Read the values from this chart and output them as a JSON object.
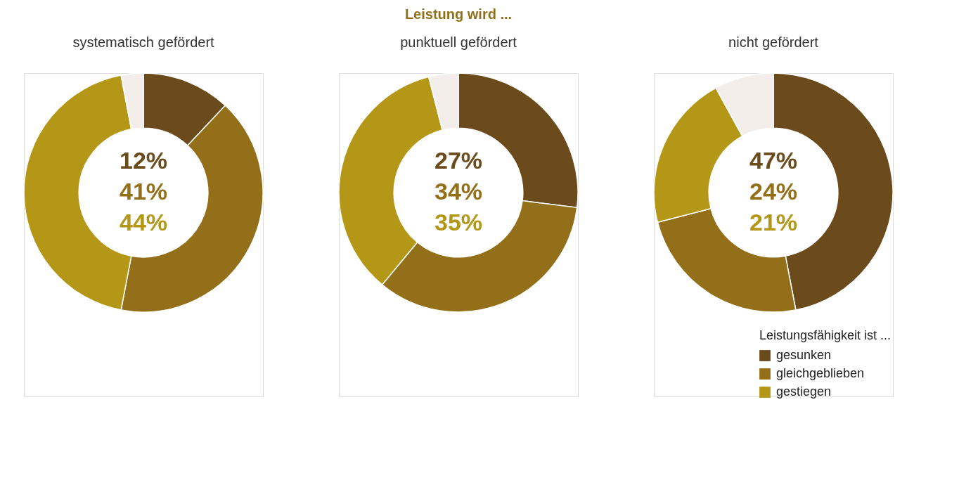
{
  "chart_data": [
    {
      "type": "donut",
      "subtitle": "systematisch gefördert",
      "categories": [
        null,
        null,
        null,
        null
      ],
      "values": [
        12,
        41,
        44,
        3
      ],
      "colors": [
        "#6b4a1c",
        "#946f19",
        "#b59718",
        "#f3eeea"
      ],
      "annotations": [
        "12%",
        "41%",
        "44%"
      ]
    },
    {
      "type": "donut",
      "title": "Leistung wird ...",
      "subtitle": "punktuell gefördert",
      "categories": [
        null,
        null,
        null,
        null
      ],
      "values": [
        27,
        34,
        35,
        4
      ],
      "colors": [
        "#6b4a1c",
        "#946f19",
        "#b59718",
        "#f3eeea"
      ],
      "annotations": [
        "27%",
        "34%",
        "35%"
      ]
    },
    {
      "type": "donut",
      "subtitle": "nicht gefördert",
      "categories": [
        "gesunken",
        "gleichgeblieben",
        "gestiegen",
        null
      ],
      "values": [
        47,
        24,
        21,
        8
      ],
      "colors": [
        "#6b4a1c",
        "#946f19",
        "#b59718",
        "#f3eeea"
      ],
      "annotations": [
        "47%",
        "24%",
        "21%"
      ],
      "legend": "bottom right",
      "legend_title": "Leistungsfähigkeit ist ..."
    }
  ]
}
